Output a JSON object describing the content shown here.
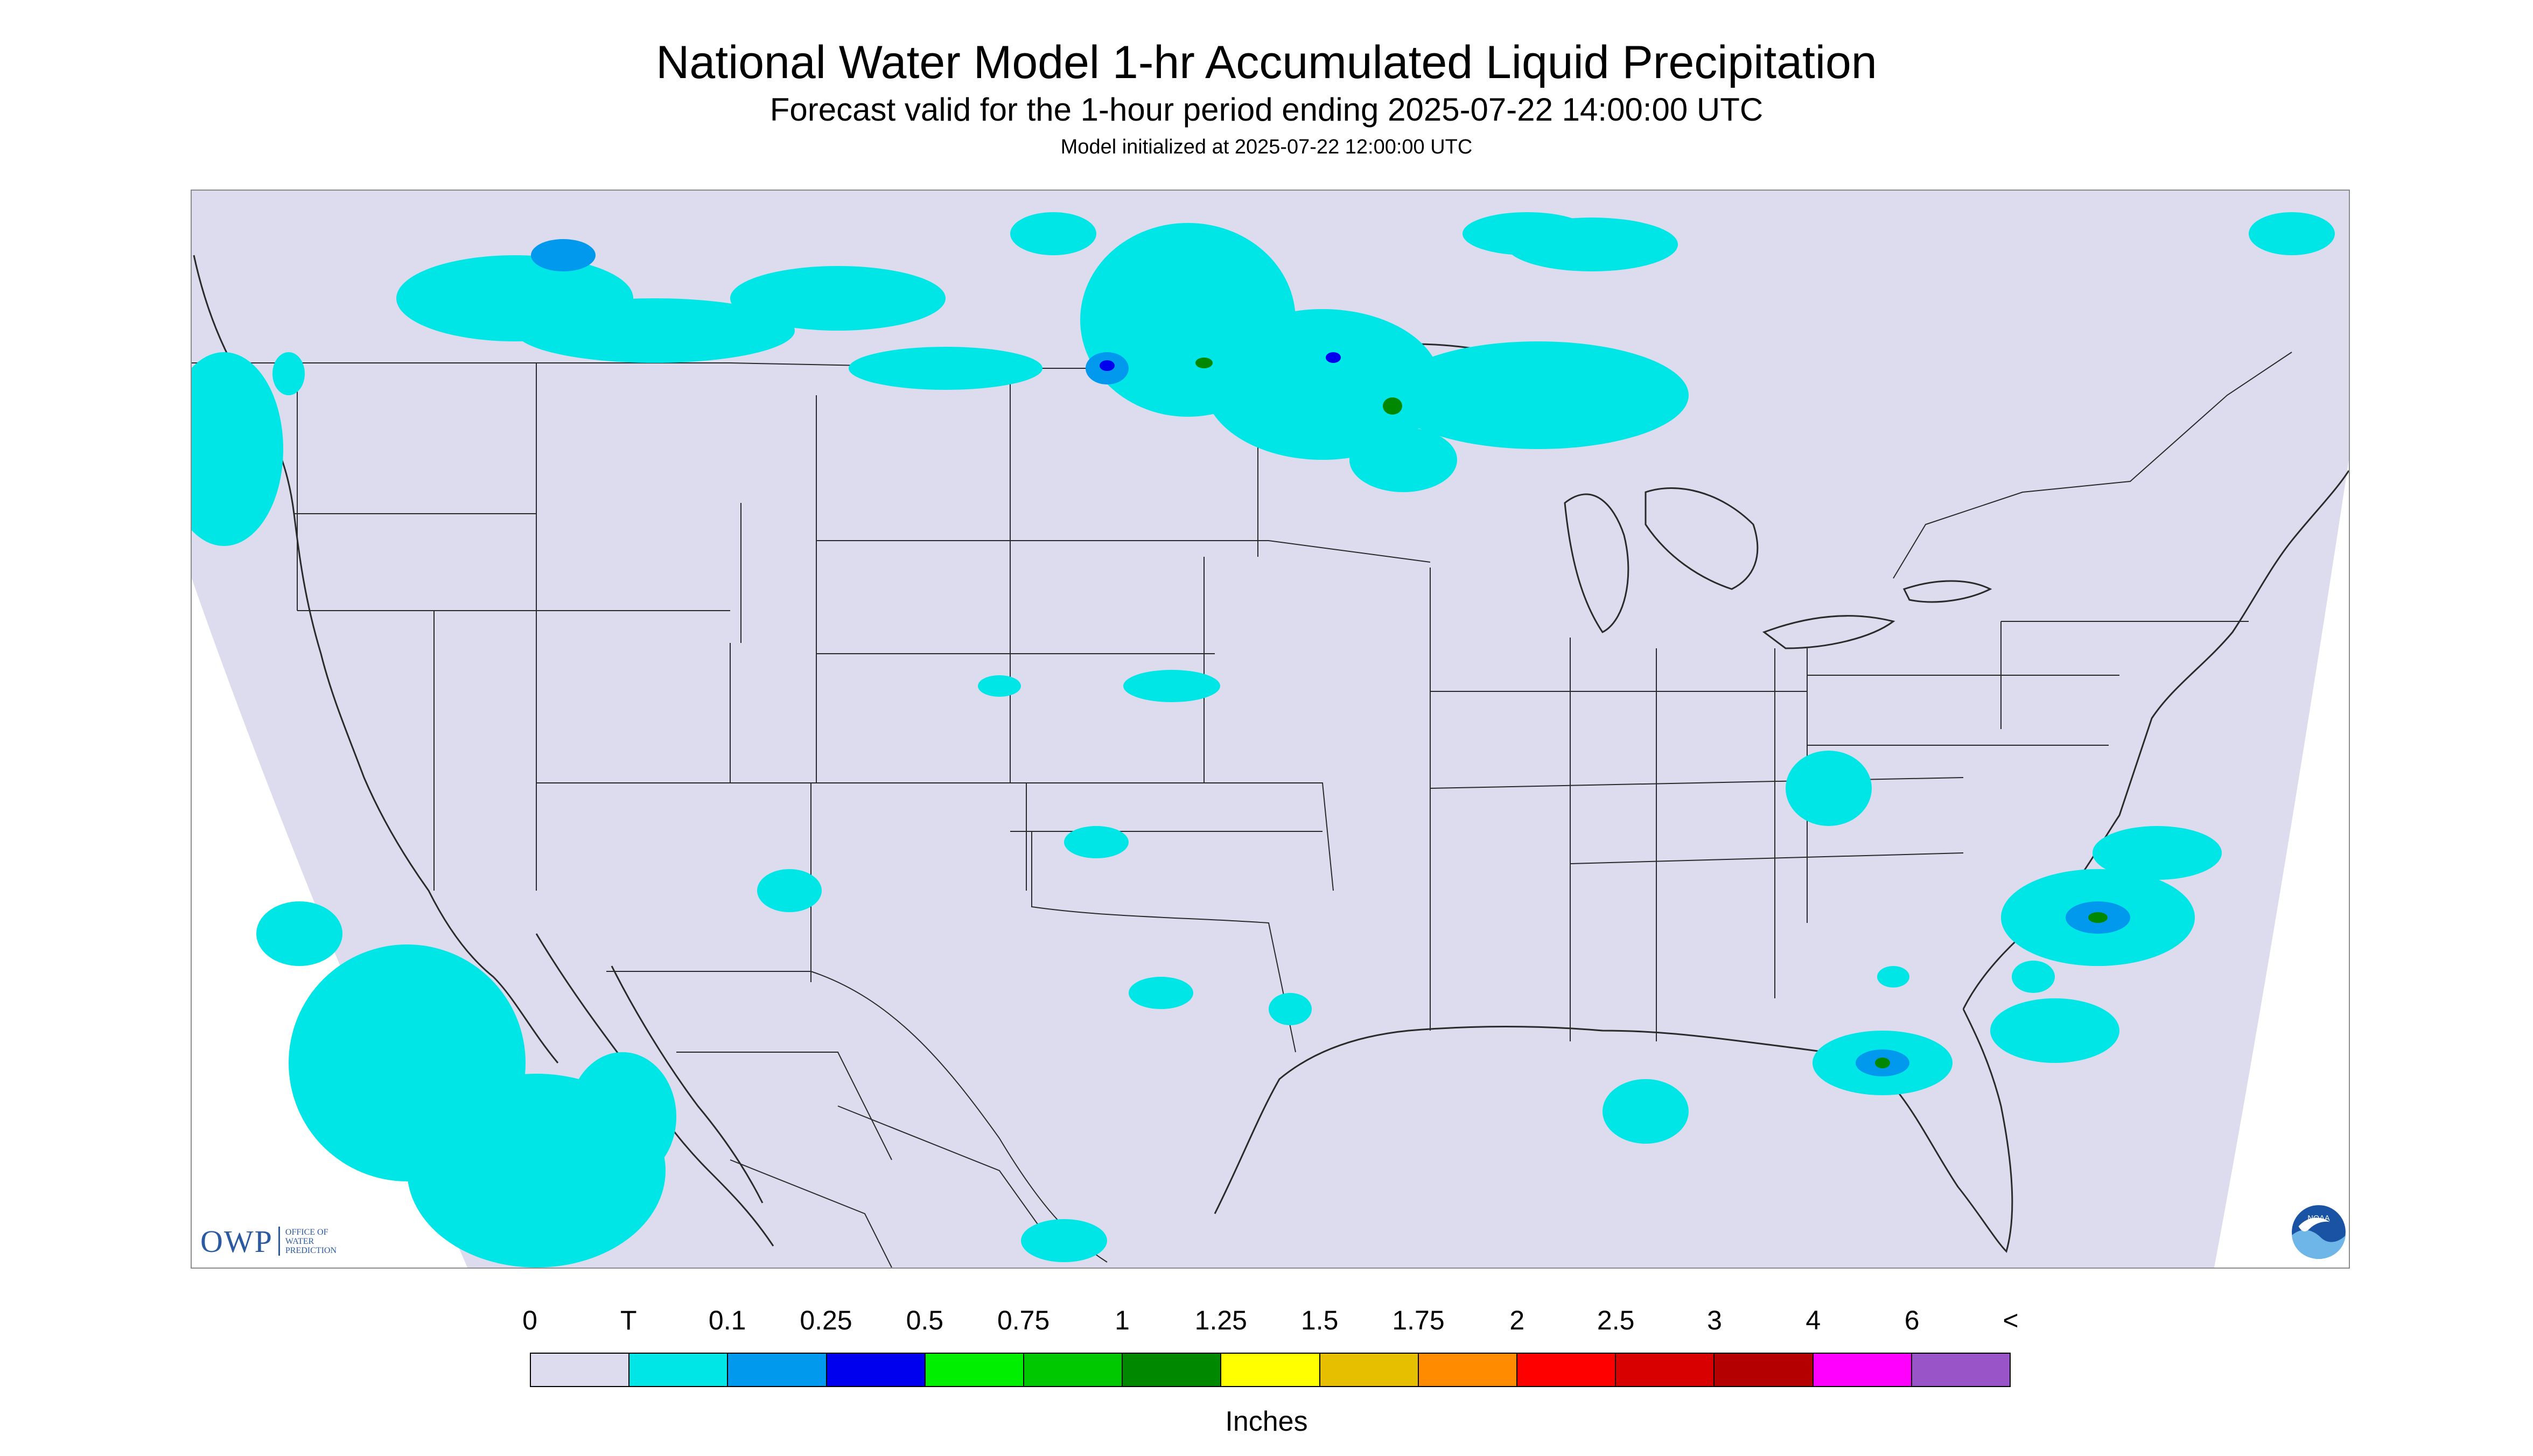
{
  "title": "National Water Model 1-hr Accumulated Liquid Precipitation",
  "subtitle": "Forecast valid for the 1-hour period ending 2025-07-22 14:00:00 UTC",
  "model_init": "Model initialized at 2025-07-22 12:00:00 UTC",
  "branding": {
    "owp_mark": "OWP",
    "owp_text_lines": [
      "OFFICE OF",
      "WATER",
      "PREDICTION"
    ],
    "noaa_logo_text": "NOAA"
  },
  "colors": {
    "map_background": "#dcdcee",
    "boundary_line": "#2a2a2a",
    "precip_trace": "#00e6e6",
    "precip_0_1": "#0099ee",
    "precip_0_25": "#0000ee",
    "precip_high": "#008800"
  },
  "legend": {
    "labels": [
      "0",
      "T",
      "0.1",
      "0.25",
      "0.5",
      "0.75",
      "1",
      "1.25",
      "1.5",
      "1.75",
      "2",
      "2.5",
      "3",
      "4",
      "6",
      "<"
    ],
    "colors": [
      "#dcdcee",
      "#00e6e6",
      "#0099ee",
      "#0000ee",
      "#00ee00",
      "#00c800",
      "#008800",
      "#ffff00",
      "#e6bf00",
      "#ff8c00",
      "#ff0000",
      "#d80000",
      "#b40000",
      "#ff00ff",
      "#9955c8"
    ],
    "units": "Inches"
  }
}
